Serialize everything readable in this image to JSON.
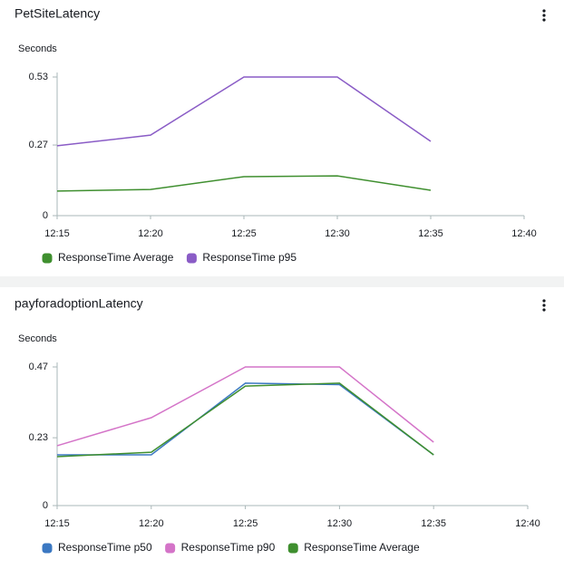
{
  "chart_data": [
    {
      "type": "line",
      "title": "PetSiteLatency",
      "y_label": "Seconds",
      "categories": [
        "12:15",
        "12:20",
        "12:25",
        "12:30",
        "12:35",
        "12:40"
      ],
      "ylim": [
        0,
        0.53
      ],
      "yticks": [
        0,
        0.27,
        0.53
      ],
      "grid": false,
      "series": [
        {
          "name": "ResponseTime Average",
          "color": "#3f8f2f",
          "values": [
            0.094,
            0.1,
            0.149,
            0.152,
            0.097,
            null
          ]
        },
        {
          "name": "ResponseTime p95",
          "color": "#8a5cc6",
          "values": [
            0.267,
            0.308,
            0.53,
            0.53,
            0.284,
            null
          ]
        }
      ]
    },
    {
      "type": "line",
      "title": "payforadoptionLatency",
      "y_label": "Seconds",
      "categories": [
        "12:15",
        "12:20",
        "12:25",
        "12:30",
        "12:35",
        "12:40"
      ],
      "ylim": [
        0,
        0.47
      ],
      "yticks": [
        0,
        0.23,
        0.47
      ],
      "grid": false,
      "series": [
        {
          "name": "ResponseTime p50",
          "color": "#3b78c2",
          "values": [
            0.172,
            0.172,
            0.415,
            0.41,
            0.172,
            null
          ]
        },
        {
          "name": "ResponseTime p90",
          "color": "#d474c8",
          "values": [
            0.203,
            0.298,
            0.47,
            0.47,
            0.215,
            null
          ]
        },
        {
          "name": "ResponseTime Average",
          "color": "#3f8f2f",
          "values": [
            0.166,
            0.181,
            0.405,
            0.415,
            0.172,
            null
          ]
        }
      ]
    }
  ]
}
